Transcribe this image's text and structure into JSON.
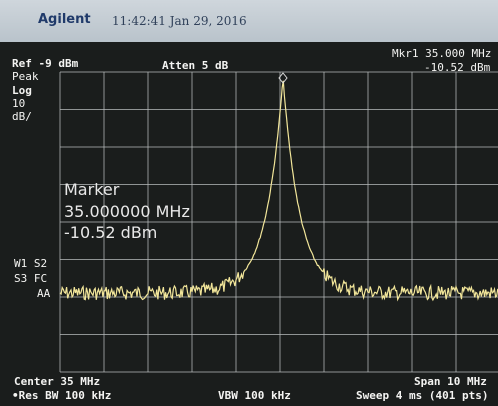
{
  "header": {
    "brand": "Agilent",
    "timestamp": "11:42:41  Jan 29, 2016"
  },
  "settings": {
    "ref_level": "Ref -9 dBm",
    "detector": "Peak",
    "scale": "Log",
    "scale_per_div": "10",
    "scale_unit": "dB/",
    "attenuation": "Atten 5 dB"
  },
  "marker_readout": {
    "frequency": "Mkr1  35.000 MHz",
    "level": "-10.52 dBm"
  },
  "marker_box": {
    "title": "Marker",
    "frequency": "35.000000 MHz",
    "level": "-10.52 dBm"
  },
  "status": [
    "W1 S2",
    "S3 FC",
    "AA"
  ],
  "footer": {
    "center": "Center 35 MHz",
    "res_bw": "•Res BW 100 kHz",
    "vbw": "VBW 100 kHz",
    "span": "Span 10 MHz",
    "sweep": "Sweep 4 ms (401 pts)"
  }
}
